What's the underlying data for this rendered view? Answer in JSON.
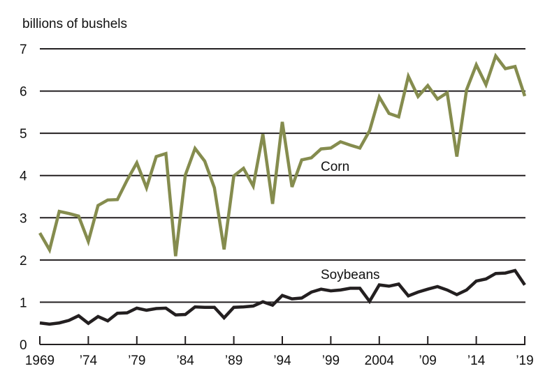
{
  "chart_data": {
    "type": "line",
    "title": "",
    "ylabel": "billions of bushels",
    "xlabel": "",
    "ylim": [
      0,
      7
    ],
    "xlim": [
      1969,
      2019
    ],
    "grid": true,
    "yticks": [
      "0",
      "1",
      "2",
      "3",
      "4",
      "5",
      "6",
      "7"
    ],
    "xticks": [
      {
        "year": 1969,
        "label": "1969"
      },
      {
        "year": 1974,
        "label": "’74"
      },
      {
        "year": 1979,
        "label": "’79"
      },
      {
        "year": 1984,
        "label": "’84"
      },
      {
        "year": 1989,
        "label": "’89"
      },
      {
        "year": 1994,
        "label": "’94"
      },
      {
        "year": 1999,
        "label": "’99"
      },
      {
        "year": 2004,
        "label": "2004"
      },
      {
        "year": 2009,
        "label": "’09"
      },
      {
        "year": 2014,
        "label": "’14"
      },
      {
        "year": 2019,
        "label": "’19"
      }
    ],
    "x_start": 1969,
    "series": [
      {
        "name": "Corn",
        "color": "#858c4e",
        "values": [
          2.64,
          2.24,
          3.15,
          3.1,
          3.04,
          2.44,
          3.29,
          3.42,
          3.43,
          3.89,
          4.3,
          3.71,
          4.45,
          4.52,
          2.09,
          4.01,
          4.64,
          4.34,
          3.71,
          2.25,
          3.99,
          4.17,
          3.75,
          4.98,
          3.33,
          5.27,
          3.73,
          4.37,
          4.42,
          4.63,
          4.65,
          4.8,
          4.72,
          4.65,
          5.06,
          5.86,
          5.47,
          5.39,
          6.35,
          5.87,
          6.13,
          5.81,
          5.96,
          4.45,
          6.03,
          6.62,
          6.15,
          6.83,
          6.53,
          6.58,
          5.88
        ]
      },
      {
        "name": "Soybeans",
        "color": "#231f20",
        "values": [
          0.51,
          0.48,
          0.51,
          0.57,
          0.68,
          0.5,
          0.66,
          0.56,
          0.74,
          0.75,
          0.86,
          0.81,
          0.85,
          0.86,
          0.7,
          0.71,
          0.89,
          0.88,
          0.88,
          0.63,
          0.88,
          0.89,
          0.91,
          1.01,
          0.93,
          1.16,
          1.08,
          1.1,
          1.24,
          1.31,
          1.27,
          1.29,
          1.33,
          1.33,
          1.02,
          1.41,
          1.38,
          1.43,
          1.15,
          1.24,
          1.31,
          1.37,
          1.29,
          1.18,
          1.29,
          1.5,
          1.55,
          1.68,
          1.69,
          1.75,
          1.41
        ]
      }
    ]
  }
}
